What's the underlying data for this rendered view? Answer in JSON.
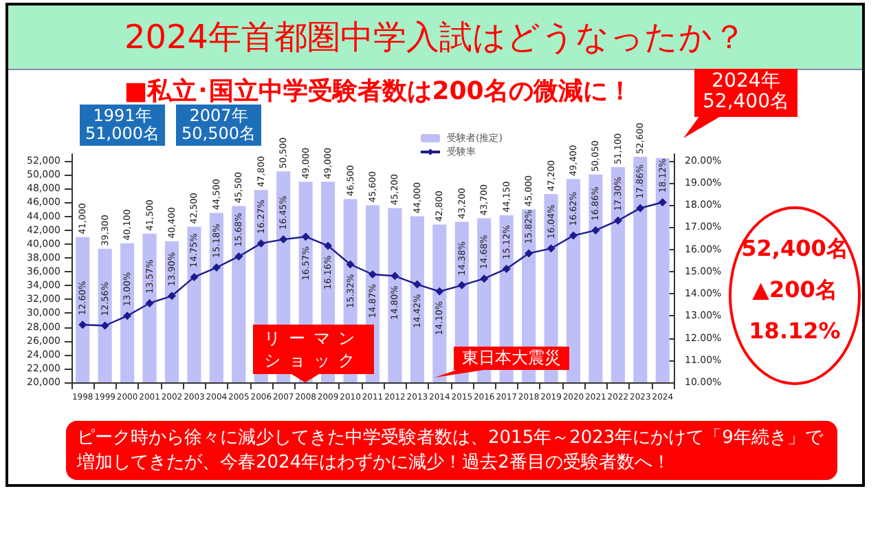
{
  "chart_data": {
    "type": "bar",
    "title": "2024年首都圏中学入試はどうなったか？",
    "subtitle": "■私立･国立中学受験者数は200名の微減に！",
    "categories": [
      "1998",
      "1999",
      "2000",
      "2001",
      "2002",
      "2003",
      "2004",
      "2005",
      "2006",
      "2007",
      "2008",
      "2009",
      "2010",
      "2011",
      "2012",
      "2013",
      "2014",
      "2015",
      "2016",
      "2017",
      "2018",
      "2019",
      "2020",
      "2021",
      "2022",
      "2023",
      "2024"
    ],
    "series": [
      {
        "name": "受験者(推定)",
        "color": "#bfbff7",
        "values": [
          41000,
          39300,
          40100,
          41500,
          40400,
          42500,
          44500,
          45500,
          47800,
          50500,
          49000,
          49000,
          46500,
          45600,
          45200,
          44000,
          42800,
          43200,
          43700,
          44150,
          45000,
          47200,
          49400,
          50050,
          51100,
          52600,
          52400
        ],
        "value_labels": [
          "41,000",
          "39,300",
          "40,100",
          "41,500",
          "40,400",
          "42,500",
          "44,500",
          "45,500",
          "47,800",
          "50,500",
          "49,000",
          "49,000",
          "46,500",
          "45,600",
          "45,200",
          "44,000",
          "42,800",
          "43,200",
          "43,700",
          "44,150",
          "45,000",
          "47,200",
          "49,400",
          "50,050",
          "51,100",
          "52,600",
          null
        ]
      },
      {
        "name": "受験率",
        "type": "line",
        "axis": "y2",
        "color": "#1c1c8c",
        "values": [
          12.6,
          12.56,
          13.0,
          13.57,
          13.9,
          14.75,
          15.18,
          15.68,
          16.27,
          16.45,
          16.57,
          16.16,
          15.32,
          14.87,
          14.8,
          14.42,
          14.1,
          14.38,
          14.68,
          15.12,
          15.82,
          16.04,
          16.62,
          16.86,
          17.3,
          17.86,
          18.12
        ],
        "value_labels": [
          "12.60%",
          "12.56%",
          "13.00%",
          "13.57%",
          "13.90%",
          "14.75%",
          "15.18%",
          "15.68%",
          "16.27%",
          "16.45%",
          "16.57%",
          "16.16%",
          "15.32%",
          "14.87%",
          "14.80%",
          "14.42%",
          "14.10%",
          "14.38%",
          "14.68%",
          "15.12%",
          "15.82%",
          "16.04%",
          "16.62%",
          "16.86%",
          "17.30%",
          "17.86%",
          "18.12%"
        ]
      }
    ],
    "ylim": [
      20000,
      53000
    ],
    "yticks": [
      {
        "value": 20000,
        "label": "20,000"
      },
      {
        "value": 22000,
        "label": "22,000"
      },
      {
        "value": 24000,
        "label": "24,000"
      },
      {
        "value": 26000,
        "label": "26,000"
      },
      {
        "value": 28000,
        "label": "28,000"
      },
      {
        "value": 30000,
        "label": "30,000"
      },
      {
        "value": 32000,
        "label": "32,000"
      },
      {
        "value": 34000,
        "label": "34,000"
      },
      {
        "value": 36000,
        "label": "36,000"
      },
      {
        "value": 38000,
        "label": "38,000"
      },
      {
        "value": 40000,
        "label": "40,000"
      },
      {
        "value": 42000,
        "label": "42,000"
      },
      {
        "value": 44000,
        "label": "44,000"
      },
      {
        "value": 46000,
        "label": "46,000"
      },
      {
        "value": 48000,
        "label": "48,000"
      },
      {
        "value": 50000,
        "label": "50,000"
      },
      {
        "value": 52000,
        "label": "52,000"
      }
    ],
    "y2lim": [
      10,
      20.3
    ],
    "y2ticks": [
      {
        "value": 10,
        "label": "10.00%"
      },
      {
        "value": 11,
        "label": "11.00%"
      },
      {
        "value": 12,
        "label": "12.00%"
      },
      {
        "value": 13,
        "label": "13.00%"
      },
      {
        "value": 14,
        "label": "14.00%"
      },
      {
        "value": 15,
        "label": "15.00%"
      },
      {
        "value": 16,
        "label": "16.00%"
      },
      {
        "value": 17,
        "label": "17.00%"
      },
      {
        "value": 18,
        "label": "18.00%"
      },
      {
        "value": 19,
        "label": "19.00%"
      },
      {
        "value": 20,
        "label": "20.00%"
      }
    ],
    "legend": "top",
    "marker": "diamond",
    "annotations": [
      "1991年\n51,000名",
      "2007年\n50,500名",
      "2024年\n52,400名",
      "リーマンショック",
      "東日本大震災",
      "52,400名",
      "▲200名",
      "18.12%",
      "ピーク時から徐々に減少してきた中学受験者数は、2015年～2023年にかけて「9年続き」で増加してきたが、今春2024年はわずかに減少！過去2番目の受験者数へ！"
    ]
  }
}
